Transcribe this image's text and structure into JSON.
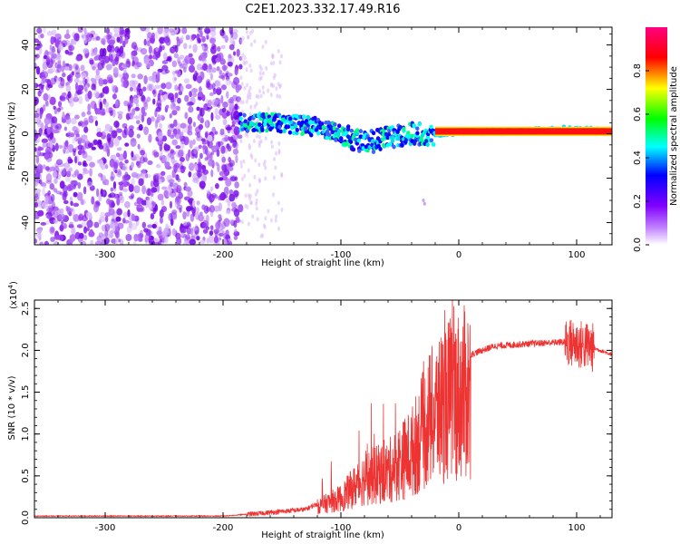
{
  "figure": {
    "title": "C2E1.2023.332.17.49.R16"
  },
  "chart_data": [
    {
      "type": "heatmap",
      "xlabel": "Height of straight line (km)",
      "ylabel": "Frequency (Hz)",
      "xlim": [
        -360,
        130
      ],
      "ylim": [
        -50,
        48
      ],
      "xticks": [
        -300,
        -200,
        -100,
        0,
        100
      ],
      "yticks": [
        -40,
        -20,
        0,
        20,
        40
      ],
      "colorbar": {
        "label": "Normalized spectral amplitude",
        "range": [
          0,
          1
        ],
        "ticks": [
          "0.0",
          "0.2",
          "0.4",
          "0.6",
          "0.8"
        ],
        "colormap": [
          "#ffffff",
          "#8000ff",
          "#0000ff",
          "#00ffff",
          "#00ff00",
          "#ffff00",
          "#ff0000",
          "#ff0080"
        ]
      },
      "features": {
        "noise_region_x": [
          -360,
          -185
        ],
        "signal_band": [
          {
            "x": -185,
            "y": 5
          },
          {
            "x": -150,
            "y": 5
          },
          {
            "x": -120,
            "y": 3
          },
          {
            "x": -100,
            "y": 0
          },
          {
            "x": -80,
            "y": -4
          },
          {
            "x": -60,
            "y": -2
          },
          {
            "x": -40,
            "y": 0
          },
          {
            "x": -20,
            "y": 0
          },
          {
            "x": 0,
            "y": 1
          },
          {
            "x": 50,
            "y": 1
          },
          {
            "x": 90,
            "y": 2
          },
          {
            "x": 130,
            "y": 1
          }
        ]
      }
    },
    {
      "type": "line",
      "xlabel": "Height of straight line (km)",
      "ylabel": "SNR (10 * v/v)",
      "yscale_label": "(x10",
      "yscale_exp": "4",
      "yscale_close": ")",
      "xlim": [
        -360,
        130
      ],
      "ylim": [
        0,
        2.6
      ],
      "xticks": [
        -300,
        -200,
        -100,
        0,
        100
      ],
      "yticks": [
        "0.0",
        "0.5",
        "1.0",
        "1.5",
        "2.0",
        "2.5"
      ],
      "series": [
        {
          "color": "#ee3333",
          "envelope": [
            {
              "x": -360,
              "y": 0.02
            },
            {
              "x": -200,
              "y": 0.02
            },
            {
              "x": -170,
              "y": 0.05
            },
            {
              "x": -130,
              "y": 0.1
            },
            {
              "x": -100,
              "y": 0.3
            },
            {
              "x": -80,
              "y": 0.6
            },
            {
              "x": -60,
              "y": 0.7
            },
            {
              "x": -40,
              "y": 1.0
            },
            {
              "x": -25,
              "y": 1.5
            },
            {
              "x": -10,
              "y": 1.8
            },
            {
              "x": 10,
              "y": 1.95
            },
            {
              "x": 30,
              "y": 2.05
            },
            {
              "x": 60,
              "y": 2.08
            },
            {
              "x": 90,
              "y": 2.1
            },
            {
              "x": 110,
              "y": 2.05
            },
            {
              "x": 130,
              "y": 1.95
            }
          ]
        }
      ]
    }
  ]
}
